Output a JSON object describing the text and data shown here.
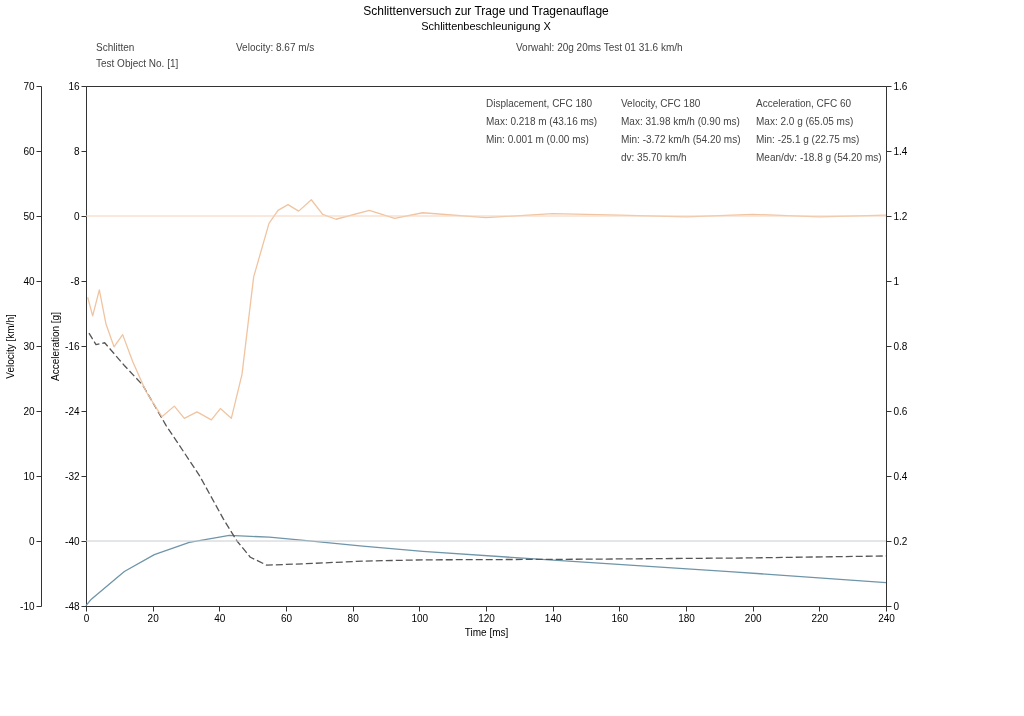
{
  "chart_data": {
    "type": "line",
    "title": "Schlittenversuch zur Trage und Tragenauflage",
    "subtitle": "Schlittenbeschleunigung X",
    "xlabel": "Time [ms]",
    "ylabel": "Velocity [km/h]",
    "y2label": "Acceleration [g]",
    "xlim": [
      0,
      240
    ],
    "xticks": [
      0,
      20,
      40,
      60,
      80,
      100,
      120,
      140,
      160,
      180,
      200,
      220,
      240
    ],
    "ylim": [
      -10,
      70
    ],
    "yticks": [
      -10,
      0,
      10,
      20,
      30,
      40,
      50,
      60,
      70
    ],
    "y2lim": [
      -48,
      16
    ],
    "y2ticks": [
      -48,
      -40,
      -32,
      -24,
      -16,
      -8,
      0,
      8,
      16
    ],
    "y3lim": [
      0,
      1.6
    ],
    "y3ticks": [
      0,
      0.2,
      0.4,
      0.6,
      0.8,
      1,
      1.2,
      1.4,
      1.6
    ],
    "grid": false,
    "series": [
      {
        "axis": "y3",
        "color": "#6f95a8",
        "line_style": "solid",
        "x": [
          0,
          1.6,
          11.5,
          20.5,
          31,
          43,
          55,
          65.4,
          83,
          101,
          139,
          193,
          240
        ],
        "values": [
          0.001,
          0.021,
          0.106,
          0.158,
          0.196,
          0.217,
          0.212,
          0.202,
          0.184,
          0.168,
          0.142,
          0.106,
          0.072
        ]
      },
      {
        "axis": "y",
        "color": "#555555",
        "line_style": "dashed",
        "x": [
          0.9,
          3,
          5.6,
          11.5,
          17,
          24,
          34,
          41.2,
          45.3,
          49.3,
          54.2,
          65.4,
          83,
          101,
          150,
          200,
          240
        ],
        "values": [
          31.98,
          30.2,
          30.5,
          27.0,
          24.0,
          17.8,
          10.1,
          3.4,
          0,
          -2.5,
          -3.72,
          -3.5,
          -3.1,
          -2.9,
          -2.8,
          -2.6,
          -2.3
        ]
      },
      {
        "axis": "y2",
        "color": "#f0c4a0",
        "line_style": "solid",
        "x": [
          0.5,
          2,
          4,
          6,
          8.4,
          11,
          14,
          18,
          22.75,
          26.5,
          29.5,
          33.3,
          37.6,
          40.3,
          43.6,
          46.8,
          50.3,
          54.9,
          57.6,
          60.6,
          63.8,
          67.6,
          71,
          75,
          85,
          92.6,
          101,
          120,
          140,
          160,
          180,
          200,
          220,
          240
        ],
        "values": [
          -10,
          -12.3,
          -9.1,
          -13.3,
          -16.1,
          -14.6,
          -17.9,
          -21.6,
          -24.7,
          -23.4,
          -24.9,
          -24.1,
          -25.1,
          -23.7,
          -24.9,
          -19.5,
          -7.5,
          -0.9,
          0.7,
          1.4,
          0.6,
          2.0,
          0.2,
          -0.4,
          0.7,
          -0.3,
          0.4,
          -0.2,
          0.3,
          0.1,
          -0.1,
          0.2,
          -0.1,
          0.1
        ]
      }
    ],
    "ref_lines": [
      {
        "axis": "y",
        "value": 0,
        "color": "#c8ccd0"
      },
      {
        "axis": "y2",
        "value": 0,
        "color": "#f3d2b8"
      }
    ],
    "annotations": [
      "Schlitten",
      "Velocity: 8.67 m/s",
      "Vorwahl: 20g 20ms  Test 01  31.6 km/h",
      "Test Object No. [1]",
      "Displacement, CFC 180",
      "Max: 0.218 m (43.16 ms)",
      "Min: 0.001 m (0.00 ms)",
      "Velocity, CFC 180",
      "Max: 31.98 km/h (0.90 ms)",
      "Min: -3.72 km/h (54.20 ms)",
      "dv: 35.70 km/h",
      "Acceleration, CFC 60",
      "Max: 2.0 g (65.05 ms)",
      "Min: -25.1 g (22.75 ms)",
      "Mean/dv: -18.8 g (54.20 ms)"
    ]
  }
}
